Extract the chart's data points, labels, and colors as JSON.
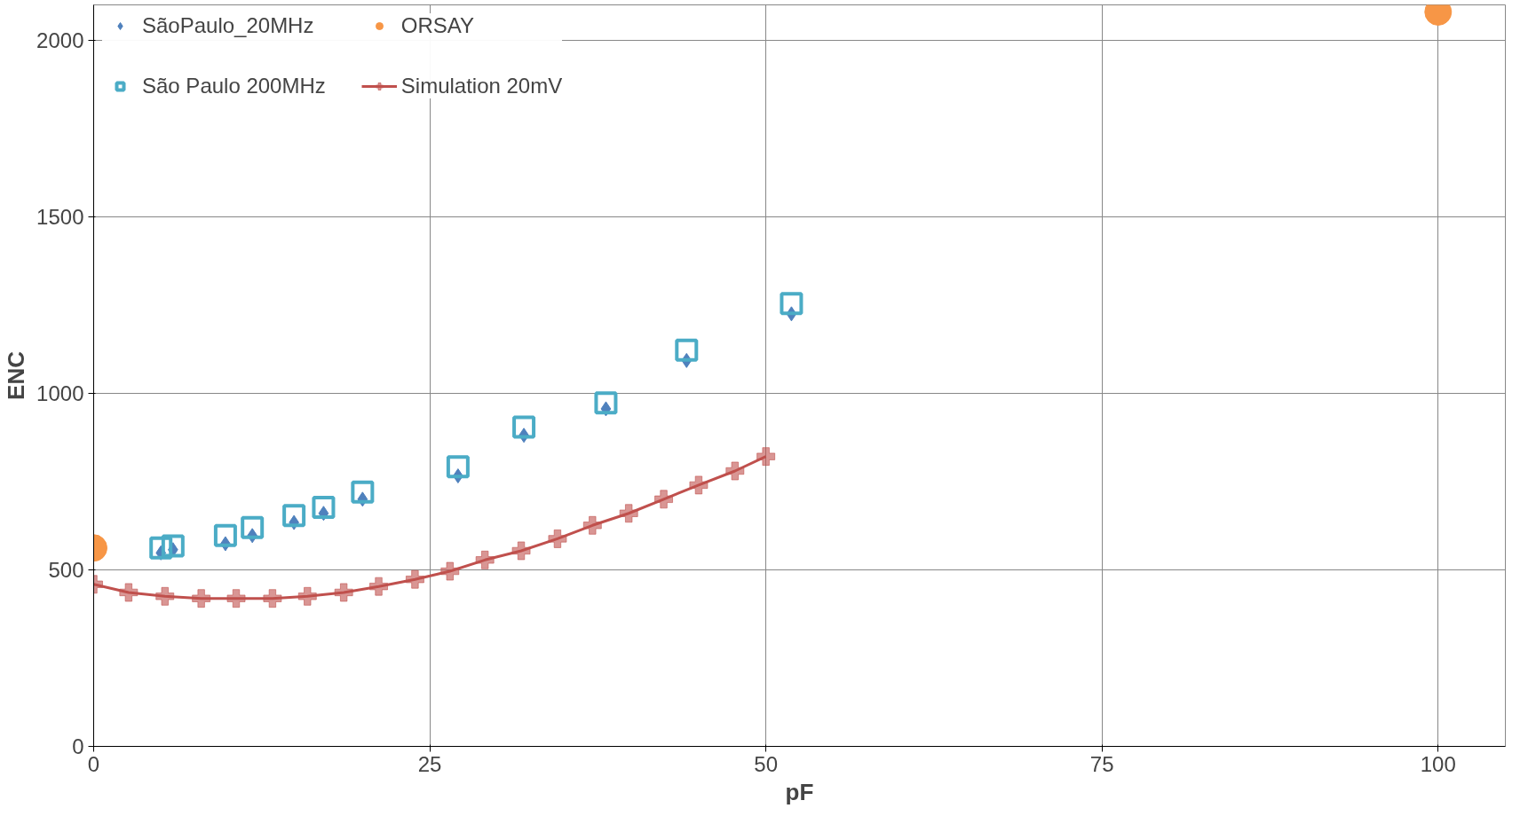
{
  "chart_data": {
    "type": "scatter",
    "xlabel": "pF",
    "ylabel": "ENC",
    "xlim": [
      0,
      105
    ],
    "ylim": [
      0,
      2100
    ],
    "xticks": [
      0,
      25,
      50,
      75,
      100
    ],
    "yticks": [
      0,
      500,
      1000,
      1500,
      2000
    ],
    "grid": true,
    "legend": "top left",
    "series": [
      {
        "name": "SãoPaulo_20MHz",
        "color": "#4f81bd",
        "marker": "diamond",
        "x": [
          5.0,
          5.9,
          9.8,
          11.8,
          14.9,
          17.1,
          20.0,
          27.1,
          32.0,
          38.1,
          44.1,
          51.9
        ],
        "values": [
          548,
          557,
          574,
          597,
          634,
          660,
          700,
          766,
          881,
          956,
          1093,
          1225
        ]
      },
      {
        "name": "São Paulo 200MHz",
        "color": "#4bacc6",
        "marker": "square",
        "x": [
          5.0,
          5.9,
          9.8,
          11.8,
          14.9,
          17.1,
          20.0,
          27.1,
          32.0,
          38.1,
          44.1,
          51.9
        ],
        "values": [
          562,
          568,
          597,
          620,
          654,
          677,
          720,
          792,
          904,
          973,
          1122,
          1254
        ]
      },
      {
        "name": "ORSAY",
        "color": "#f79646",
        "marker": "circle",
        "x": [
          0,
          100
        ],
        "values": [
          562,
          2080
        ]
      },
      {
        "name": "Simulation 20mV",
        "type": "line",
        "color": "#c0504d",
        "marker": "cross",
        "x": [
          0,
          2.6,
          5.3,
          8.0,
          10.6,
          13.3,
          15.9,
          18.6,
          21.2,
          23.9,
          26.5,
          29.1,
          31.8,
          34.5,
          37.1,
          39.8,
          42.4,
          45.0,
          47.7,
          50
        ],
        "values": [
          459,
          436,
          425,
          419,
          419,
          419,
          425,
          436,
          453,
          473,
          496,
          528,
          554,
          588,
          626,
          660,
          700,
          740,
          780,
          821
        ]
      }
    ]
  }
}
